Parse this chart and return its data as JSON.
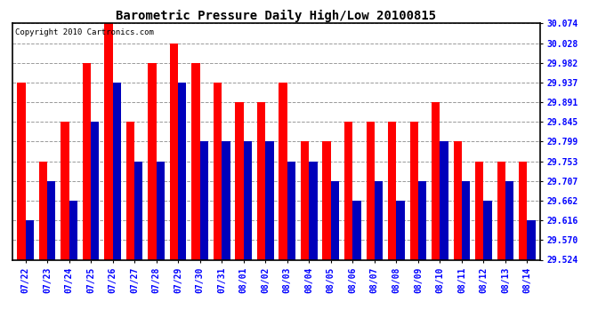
{
  "title": "Barometric Pressure Daily High/Low 20100815",
  "copyright": "Copyright 2010 Cartronics.com",
  "dates": [
    "07/22",
    "07/23",
    "07/24",
    "07/25",
    "07/26",
    "07/27",
    "07/28",
    "07/29",
    "07/30",
    "07/31",
    "08/01",
    "08/02",
    "08/03",
    "08/04",
    "08/05",
    "08/06",
    "08/07",
    "08/08",
    "08/09",
    "08/10",
    "08/11",
    "08/12",
    "08/13",
    "08/14"
  ],
  "highs": [
    29.937,
    29.753,
    29.845,
    29.982,
    30.074,
    29.845,
    29.982,
    30.028,
    29.982,
    29.937,
    29.891,
    29.891,
    29.937,
    29.799,
    29.799,
    29.845,
    29.845,
    29.845,
    29.845,
    29.891,
    29.799,
    29.753,
    29.753,
    29.753
  ],
  "lows": [
    29.616,
    29.707,
    29.662,
    29.845,
    29.937,
    29.753,
    29.753,
    29.937,
    29.799,
    29.799,
    29.799,
    29.799,
    29.753,
    29.753,
    29.707,
    29.662,
    29.707,
    29.662,
    29.707,
    29.799,
    29.707,
    29.662,
    29.707,
    29.616
  ],
  "high_color": "#FF0000",
  "low_color": "#0000BB",
  "bg_color": "#FFFFFF",
  "grid_color": "#999999",
  "ymin": 29.524,
  "ymax": 30.074,
  "yticks": [
    29.524,
    29.57,
    29.616,
    29.662,
    29.707,
    29.753,
    29.799,
    29.845,
    29.891,
    29.937,
    29.982,
    30.028,
    30.074
  ],
  "bar_width": 0.38,
  "figwidth": 6.9,
  "figheight": 3.75,
  "dpi": 100
}
